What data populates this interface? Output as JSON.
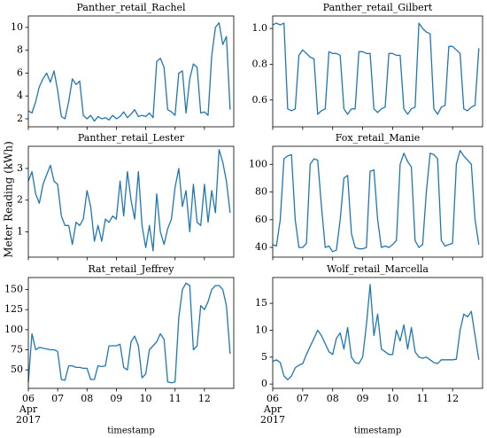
{
  "ylabel": "Meter Reading (kWh)",
  "x_axis": {
    "xlim": [
      "2017-04-06",
      "2017-04-13"
    ],
    "xticks": [
      {
        "value": "2017-04-06",
        "label": "06"
      },
      {
        "value": "2017-04-07",
        "label": "07"
      },
      {
        "value": "2017-04-08",
        "label": "08"
      },
      {
        "value": "2017-04-09",
        "label": "09"
      },
      {
        "value": "2017-04-10",
        "label": "10"
      },
      {
        "value": "2017-04-11",
        "label": "11"
      },
      {
        "value": "2017-04-12",
        "label": "12"
      }
    ],
    "xtick_sublabels": [
      "Apr",
      "2017"
    ]
  },
  "chart_data": [
    {
      "type": "line",
      "title": "Panther_retail_Rachel",
      "color": "#1f77b4",
      "ylim": [
        1.3,
        11.0
      ],
      "yticks": [
        2,
        4,
        6,
        8,
        10
      ],
      "values": [
        2.7,
        2.5,
        3.5,
        4.8,
        5.5,
        6.0,
        5.2,
        6.2,
        4.5,
        2.2,
        2.0,
        3.5,
        5.5,
        5.0,
        5.3,
        2.3,
        2.0,
        2.3,
        1.8,
        2.2,
        2.0,
        2.1,
        1.9,
        2.3,
        2.0,
        2.2,
        2.6,
        2.1,
        2.4,
        2.8,
        2.2,
        2.3,
        2.2,
        2.5,
        2.1,
        7.0,
        7.3,
        6.5,
        2.8,
        2.6,
        2.3,
        6.0,
        6.2,
        2.5,
        5.5,
        6.8,
        6.5,
        2.5,
        2.6,
        2.3,
        7.5,
        10.0,
        10.4,
        8.5,
        9.2,
        2.8
      ]
    },
    {
      "type": "line",
      "title": "Panther_retail_Gilbert",
      "color": "#1f77b4",
      "ylim": [
        0.45,
        1.07
      ],
      "yticks": [
        {
          "value": 0.6,
          "label": "0.6"
        },
        {
          "value": 0.8,
          "label": "0.8"
        },
        {
          "value": 1.0,
          "label": "1.0"
        }
      ],
      "values": [
        1.02,
        1.03,
        1.02,
        1.03,
        0.55,
        0.54,
        0.55,
        0.85,
        0.88,
        0.86,
        0.84,
        0.83,
        0.52,
        0.54,
        0.55,
        0.87,
        0.86,
        0.86,
        0.85,
        0.55,
        0.52,
        0.55,
        0.55,
        0.87,
        0.87,
        0.86,
        0.86,
        0.55,
        0.53,
        0.55,
        0.56,
        0.86,
        0.86,
        0.85,
        0.85,
        0.55,
        0.52,
        0.55,
        0.56,
        1.03,
        1.0,
        0.98,
        0.97,
        0.55,
        0.52,
        0.56,
        0.57,
        0.9,
        0.9,
        0.88,
        0.86,
        0.55,
        0.54,
        0.56,
        0.57,
        0.89
      ]
    },
    {
      "type": "line",
      "title": "Panther_retail_Lester",
      "color": "#1f77b4",
      "ylim": [
        0.2,
        3.7
      ],
      "yticks": [
        1,
        2,
        3
      ],
      "values": [
        2.6,
        2.9,
        2.2,
        1.9,
        2.5,
        2.8,
        3.1,
        2.6,
        2.5,
        1.5,
        1.2,
        1.2,
        0.6,
        1.3,
        1.2,
        1.4,
        2.3,
        1.8,
        0.7,
        1.2,
        0.7,
        1.4,
        1.3,
        1.5,
        1.4,
        2.6,
        1.5,
        2.9,
        2.0,
        1.4,
        2.9,
        1.2,
        0.5,
        1.2,
        0.4,
        2.2,
        1.0,
        0.6,
        1.1,
        1.4,
        2.4,
        3.0,
        1.8,
        2.3,
        1.0,
        2.5,
        1.3,
        1.2,
        2.5,
        1.3,
        2.3,
        1.6,
        3.6,
        3.2,
        2.6,
        1.6
      ]
    },
    {
      "type": "line",
      "title": "Fox_retail_Manie",
      "color": "#1f77b4",
      "ylim": [
        33,
        113
      ],
      "yticks": [
        40,
        60,
        80,
        100
      ],
      "values": [
        42,
        41,
        60,
        104,
        106,
        107,
        60,
        40,
        40,
        43,
        100,
        104,
        103,
        70,
        40,
        41,
        37,
        38,
        60,
        90,
        92,
        50,
        40,
        39,
        39,
        40,
        95,
        96,
        60,
        40,
        41,
        40,
        42,
        45,
        100,
        108,
        102,
        98,
        45,
        40,
        42,
        80,
        108,
        107,
        104,
        45,
        41,
        42,
        43,
        100,
        110,
        106,
        103,
        100,
        60,
        42
      ]
    },
    {
      "type": "line",
      "title": "Rat_retail_Jeffrey",
      "color": "#1f77b4",
      "ylim": [
        27,
        165
      ],
      "yticks": [
        50,
        75,
        100,
        125,
        150
      ],
      "xlabel": "timestamp",
      "values": [
        35,
        95,
        75,
        78,
        77,
        76,
        75,
        75,
        73,
        38,
        37,
        55,
        55,
        53,
        53,
        52,
        52,
        38,
        38,
        55,
        54,
        55,
        80,
        80,
        80,
        82,
        53,
        50,
        85,
        92,
        80,
        40,
        45,
        75,
        80,
        85,
        95,
        88,
        35,
        34,
        35,
        115,
        150,
        158,
        155,
        75,
        80,
        130,
        125,
        135,
        150,
        155,
        155,
        150,
        130,
        70
      ]
    },
    {
      "type": "line",
      "title": "Wolf_retail_Marcella",
      "color": "#1f77b4",
      "ylim": [
        -0.8,
        19.8
      ],
      "yticks": [
        0,
        5,
        10,
        15
      ],
      "xlabel": "timestamp",
      "values": [
        4.2,
        4.5,
        4.0,
        1.5,
        0.8,
        1.5,
        3.0,
        3.5,
        3.8,
        5.5,
        7.0,
        8.5,
        10.0,
        9.0,
        7.5,
        6.0,
        5.5,
        8.5,
        9.5,
        6.5,
        10.5,
        5.0,
        4.0,
        3.8,
        5.0,
        11.0,
        18.5,
        9.0,
        13.0,
        6.5,
        6.0,
        5.5,
        5.5,
        10.0,
        8.0,
        11.0,
        6.5,
        10.5,
        6.0,
        5.0,
        4.8,
        5.0,
        4.5,
        4.0,
        3.8,
        4.5,
        4.5,
        4.5,
        4.5,
        4.6,
        10.0,
        13.0,
        12.5,
        13.5,
        9.0,
        4.5
      ]
    }
  ]
}
